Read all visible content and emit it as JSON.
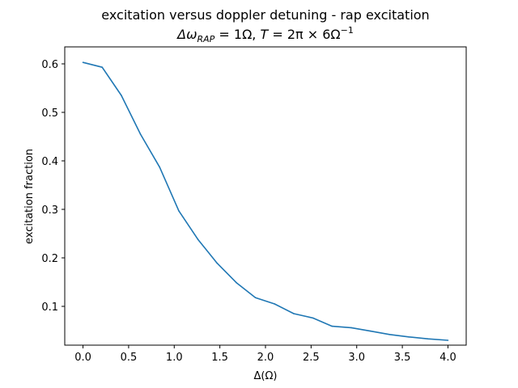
{
  "chart_data": {
    "type": "line",
    "title": "excitation versus doppler detuning - rap excitation",
    "subtitle": {
      "pre_delta": "Δω",
      "subscript": "RAP",
      "mid": " = 1Ω, ",
      "T": "T",
      "post_T": " = 2π × 6Ω",
      "superscript": "−1"
    },
    "xlabel": "Δ(Ω)",
    "ylabel": "excitation fraction",
    "xlim": [
      -0.2,
      4.2
    ],
    "ylim": [
      0.02,
      0.635
    ],
    "xticks": [
      "0.0",
      "0.5",
      "1.0",
      "1.5",
      "2.0",
      "2.5",
      "3.0",
      "3.5",
      "4.0"
    ],
    "yticks": [
      "0.1",
      "0.2",
      "0.3",
      "0.4",
      "0.5",
      "0.6"
    ],
    "grid": false,
    "series": [
      {
        "color": "#1f77b4",
        "x": [
          0.0,
          0.21,
          0.42,
          0.63,
          0.84,
          1.05,
          1.26,
          1.47,
          1.68,
          1.89,
          2.1,
          2.31,
          2.52,
          2.73,
          2.94,
          3.15,
          3.36,
          3.57,
          3.78,
          4.0
        ],
        "y": [
          0.603,
          0.593,
          0.535,
          0.455,
          0.387,
          0.297,
          0.238,
          0.189,
          0.149,
          0.118,
          0.105,
          0.085,
          0.076,
          0.059,
          0.056,
          0.049,
          0.042,
          0.037,
          0.033,
          0.03
        ]
      }
    ]
  }
}
